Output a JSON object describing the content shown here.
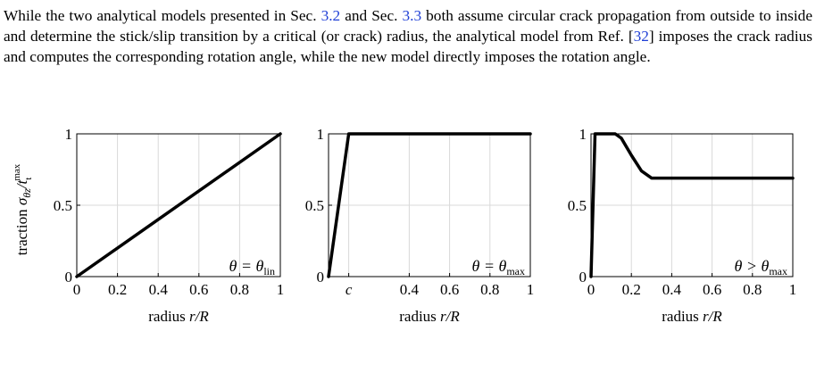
{
  "paragraph": {
    "t1": "While the two analytical models presented in Sec. ",
    "r1": "3.2",
    "t2": " and Sec. ",
    "r2": "3.3",
    "t3": " both assume circular crack propagation from outside to inside and determine the stick/slip transition by a critical (or crack) radius, the analytical model from Ref. [",
    "r3": "32",
    "t4": "] imposes the crack radius and computes the corresponding rotation angle, while the new model directly imposes the rotation angle."
  },
  "colors": {
    "link": "#1f3fd6",
    "line": "#000000",
    "grid": "#d9d9d9"
  },
  "ylabel": "traction σθz/t",
  "ylabel_sub": "t",
  "ylabel_sup": "max",
  "chart_data": [
    {
      "type": "line",
      "xlabel": "radius r/R",
      "ylim": [
        0,
        1
      ],
      "xlim": [
        0,
        1
      ],
      "xticks": [
        0,
        0.2,
        0.4,
        0.6,
        0.8,
        1
      ],
      "xticklabels": [
        "0",
        "0.2",
        "0.4",
        "0.6",
        "0.8",
        "1"
      ],
      "yticks": [
        0,
        0.5,
        1
      ],
      "yticklabels": [
        "0",
        "0.5",
        "1"
      ],
      "grid": true,
      "annotation": "θ = θlin",
      "x": [
        0,
        1
      ],
      "y": [
        0,
        1
      ]
    },
    {
      "type": "line",
      "xlabel": "radius r/R",
      "ylim": [
        0,
        1
      ],
      "xlim": [
        0,
        1
      ],
      "xticks": [
        0.1,
        0.4,
        0.6,
        0.8,
        1
      ],
      "xticklabels": [
        "c",
        "0.4",
        "0.6",
        "0.8",
        "1"
      ],
      "yticks": [
        0,
        0.5,
        1
      ],
      "yticklabels": [
        "0",
        "0.5",
        "1"
      ],
      "grid": true,
      "annotation": "θ = θmax",
      "x": [
        0,
        0.1,
        1
      ],
      "y": [
        0,
        1,
        1
      ]
    },
    {
      "type": "line",
      "xlabel": "radius r/R",
      "ylim": [
        0,
        1
      ],
      "xlim": [
        0,
        1
      ],
      "xticks": [
        0,
        0.2,
        0.4,
        0.6,
        0.8,
        1
      ],
      "xticklabels": [
        "0",
        "0.2",
        "0.4",
        "0.6",
        "0.8",
        "1"
      ],
      "yticks": [
        0,
        0.5,
        1
      ],
      "yticklabels": [
        "0",
        "0.5",
        "1"
      ],
      "grid": true,
      "annotation": "θ > θmax",
      "x": [
        0,
        0.02,
        0.12,
        0.15,
        0.2,
        0.25,
        0.3,
        1
      ],
      "y": [
        0,
        1,
        1,
        0.97,
        0.85,
        0.74,
        0.69,
        0.69
      ]
    }
  ]
}
